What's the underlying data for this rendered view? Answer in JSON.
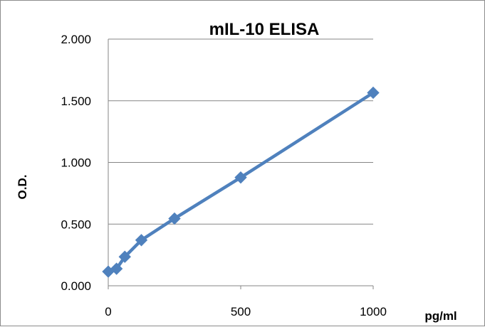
{
  "chart_data": {
    "type": "scatter",
    "title": "mIL-10 ELISA",
    "xlabel": "pg/ml",
    "ylabel": "O.D.",
    "xlim": [
      0,
      1000
    ],
    "ylim": [
      0,
      2
    ],
    "x_ticks": [
      {
        "value": 0,
        "label": "0"
      },
      {
        "value": 500,
        "label": "500"
      },
      {
        "value": 1000,
        "label": "1000"
      }
    ],
    "y_ticks": [
      {
        "value": 0,
        "label": "0.000"
      },
      {
        "value": 0.5,
        "label": "0.500"
      },
      {
        "value": 1,
        "label": "1.000"
      },
      {
        "value": 1.5,
        "label": "1.500"
      },
      {
        "value": 2,
        "label": "2.000"
      }
    ],
    "grid": "horizontal",
    "legend": "none",
    "marker": "diamond",
    "lines": "straight",
    "series": [
      {
        "color": "#4f81bd",
        "x": [
          0,
          31.25,
          62.5,
          125,
          250,
          500,
          1000
        ],
        "y": [
          0.115,
          0.138,
          0.235,
          0.37,
          0.545,
          0.878,
          1.565
        ]
      }
    ]
  }
}
